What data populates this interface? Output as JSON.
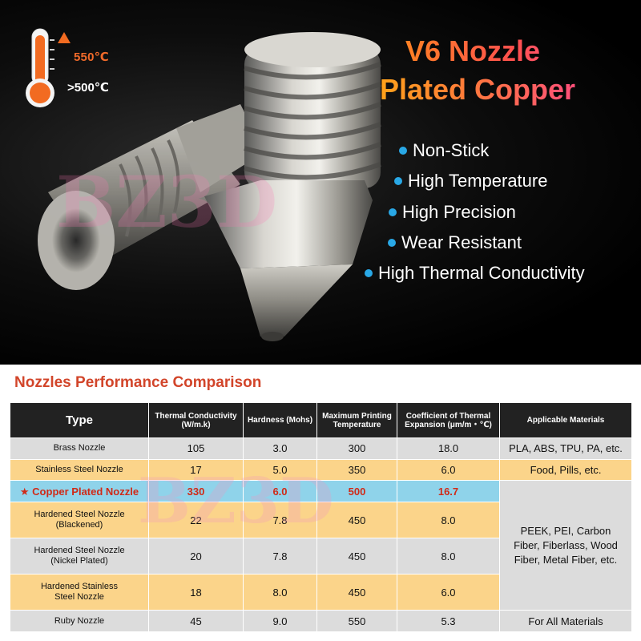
{
  "hero": {
    "temp_high": "550℃",
    "temp_low": ">500℃",
    "headline_line1": "V6 Nozzle",
    "headline_line2": "Plated Copper",
    "features": [
      "Non-Stick",
      "High Temperature",
      "High Precision",
      "Wear Resistant",
      "High Thermal Conductivity"
    ],
    "watermark": "BZ3D",
    "accent_color": "#29a8e6",
    "icons": [
      "thermometer-icon",
      "up-arrow-icon"
    ]
  },
  "comparison": {
    "title": "Nozzles Performance Comparison",
    "headers": {
      "type": "Type",
      "thermal": "Thermal Conductivity (W/m.k)",
      "hardness": "Hardness (Mohs)",
      "max_temp": "Maximum Printing Temperature",
      "cte": "Coefficient of Thermal Expansion (μm/m・℃)",
      "materials": "Applicable Materials"
    },
    "rows": [
      {
        "type": "Brass Nozzle",
        "thermal": "105",
        "hardness": "3.0",
        "max_temp": "300",
        "cte": "18.0",
        "materials": "PLA, ABS, TPU, PA, etc."
      },
      {
        "type": "Stainless Steel Nozzle",
        "thermal": "17",
        "hardness": "5.0",
        "max_temp": "350",
        "cte": "6.0",
        "materials": "Food, Pills, etc."
      },
      {
        "type": "Copper Plated Nozzle",
        "star": "★",
        "thermal": "330",
        "hardness": "6.0",
        "max_temp": "500",
        "cte": "16.7"
      },
      {
        "type_line1": "Hardened Steel Nozzle",
        "type_line2": "(Blackened)",
        "thermal": "22",
        "hardness": "7.8",
        "max_temp": "450",
        "cte": "8.0"
      },
      {
        "type_line1": "Hardened Steel Nozzle",
        "type_line2": "(Nickel Plated)",
        "thermal": "20",
        "hardness": "7.8",
        "max_temp": "450",
        "cte": "8.0"
      },
      {
        "type_line1": "Hardened Stainless",
        "type_line2": "Steel Nozzle",
        "thermal": "18",
        "hardness": "8.0",
        "max_temp": "450",
        "cte": "6.0"
      },
      {
        "type": "Ruby Nozzle",
        "thermal": "45",
        "hardness": "9.0",
        "max_temp": "550",
        "cte": "5.3",
        "materials": "For All Materials"
      }
    ],
    "merged_materials": "PEEK, PEI, Carbon Fiber, Fiberlass, Wood Fiber, Metal Fiber, etc.",
    "watermark": "BZ3D",
    "colors": {
      "header": "#222222",
      "gray": "#dcdcdc",
      "orange": "#fbd48a",
      "blue": "#8fd3ea",
      "highlight_text": "#d02a17",
      "title": "#d2452a"
    }
  }
}
